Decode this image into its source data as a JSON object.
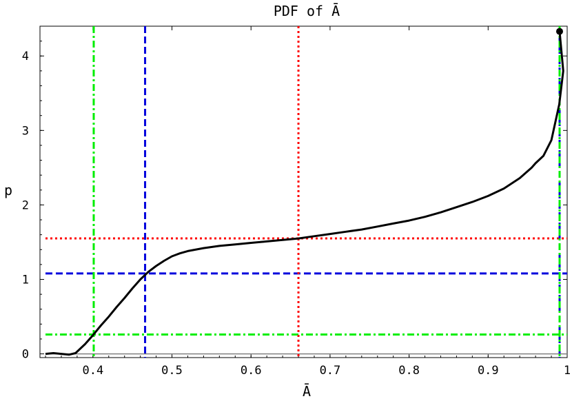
{
  "chart_data": {
    "type": "line",
    "title": "PDF of Ā",
    "xlabel": "Ā",
    "ylabel": "p",
    "xlim": [
      0.333,
      1.0
    ],
    "ylim": [
      -0.05,
      4.4
    ],
    "x_ticks": [
      0.4,
      0.5,
      0.6,
      0.7,
      0.8,
      0.9,
      1
    ],
    "x_tick_labels": [
      "0.4",
      "0.5",
      "0.6",
      "0.7",
      "0.8",
      "0.9",
      "1"
    ],
    "y_ticks": [
      0,
      1,
      2,
      3,
      4
    ],
    "y_tick_labels": [
      "0",
      "1",
      "2",
      "3",
      "4"
    ],
    "grid": false,
    "series": [
      {
        "color": "#000000",
        "style": "solid",
        "x": [
          0.34,
          0.35,
          0.36,
          0.37,
          0.378,
          0.39,
          0.4,
          0.41,
          0.42,
          0.43,
          0.44,
          0.45,
          0.46,
          0.47,
          0.48,
          0.49,
          0.5,
          0.51,
          0.52,
          0.54,
          0.56,
          0.58,
          0.6,
          0.62,
          0.64,
          0.66,
          0.68,
          0.7,
          0.72,
          0.74,
          0.76,
          0.78,
          0.8,
          0.82,
          0.84,
          0.86,
          0.88,
          0.9,
          0.92,
          0.94,
          0.955,
          0.96,
          0.97,
          0.98,
          0.99,
          0.995,
          1.0
        ],
        "y": [
          0.0,
          0.01,
          0.0,
          -0.01,
          0.01,
          0.13,
          0.25,
          0.38,
          0.5,
          0.63,
          0.75,
          0.88,
          1.0,
          1.1,
          1.18,
          1.25,
          1.31,
          1.35,
          1.38,
          1.42,
          1.45,
          1.47,
          1.49,
          1.51,
          1.53,
          1.55,
          1.58,
          1.61,
          1.64,
          1.67,
          1.71,
          1.75,
          1.79,
          1.84,
          1.9,
          1.97,
          2.04,
          2.12,
          2.22,
          2.36,
          2.5,
          2.56,
          2.66,
          2.87,
          3.35,
          3.8,
          4.33
        ]
      }
    ],
    "endpoint_marker": {
      "x": 1.0,
      "y": 4.33,
      "color": "#000000"
    },
    "baseline": {
      "y": 0,
      "color": "#808080"
    },
    "reference_lines": [
      {
        "color": "#0000dd",
        "style": "dashed",
        "x": 0.466,
        "y": 1.08
      },
      {
        "color": "#00ee00",
        "style": "dashdot",
        "x": 0.401,
        "y": 0.26
      },
      {
        "color": "#ff0000",
        "style": "dotted",
        "x": 0.66,
        "y": 1.55
      },
      {
        "color": "#0000dd",
        "style": "dashed",
        "x": 1.0,
        "y": null
      },
      {
        "color": "#00ee00",
        "style": "dashdot",
        "x": 1.0,
        "y": null
      }
    ]
  }
}
